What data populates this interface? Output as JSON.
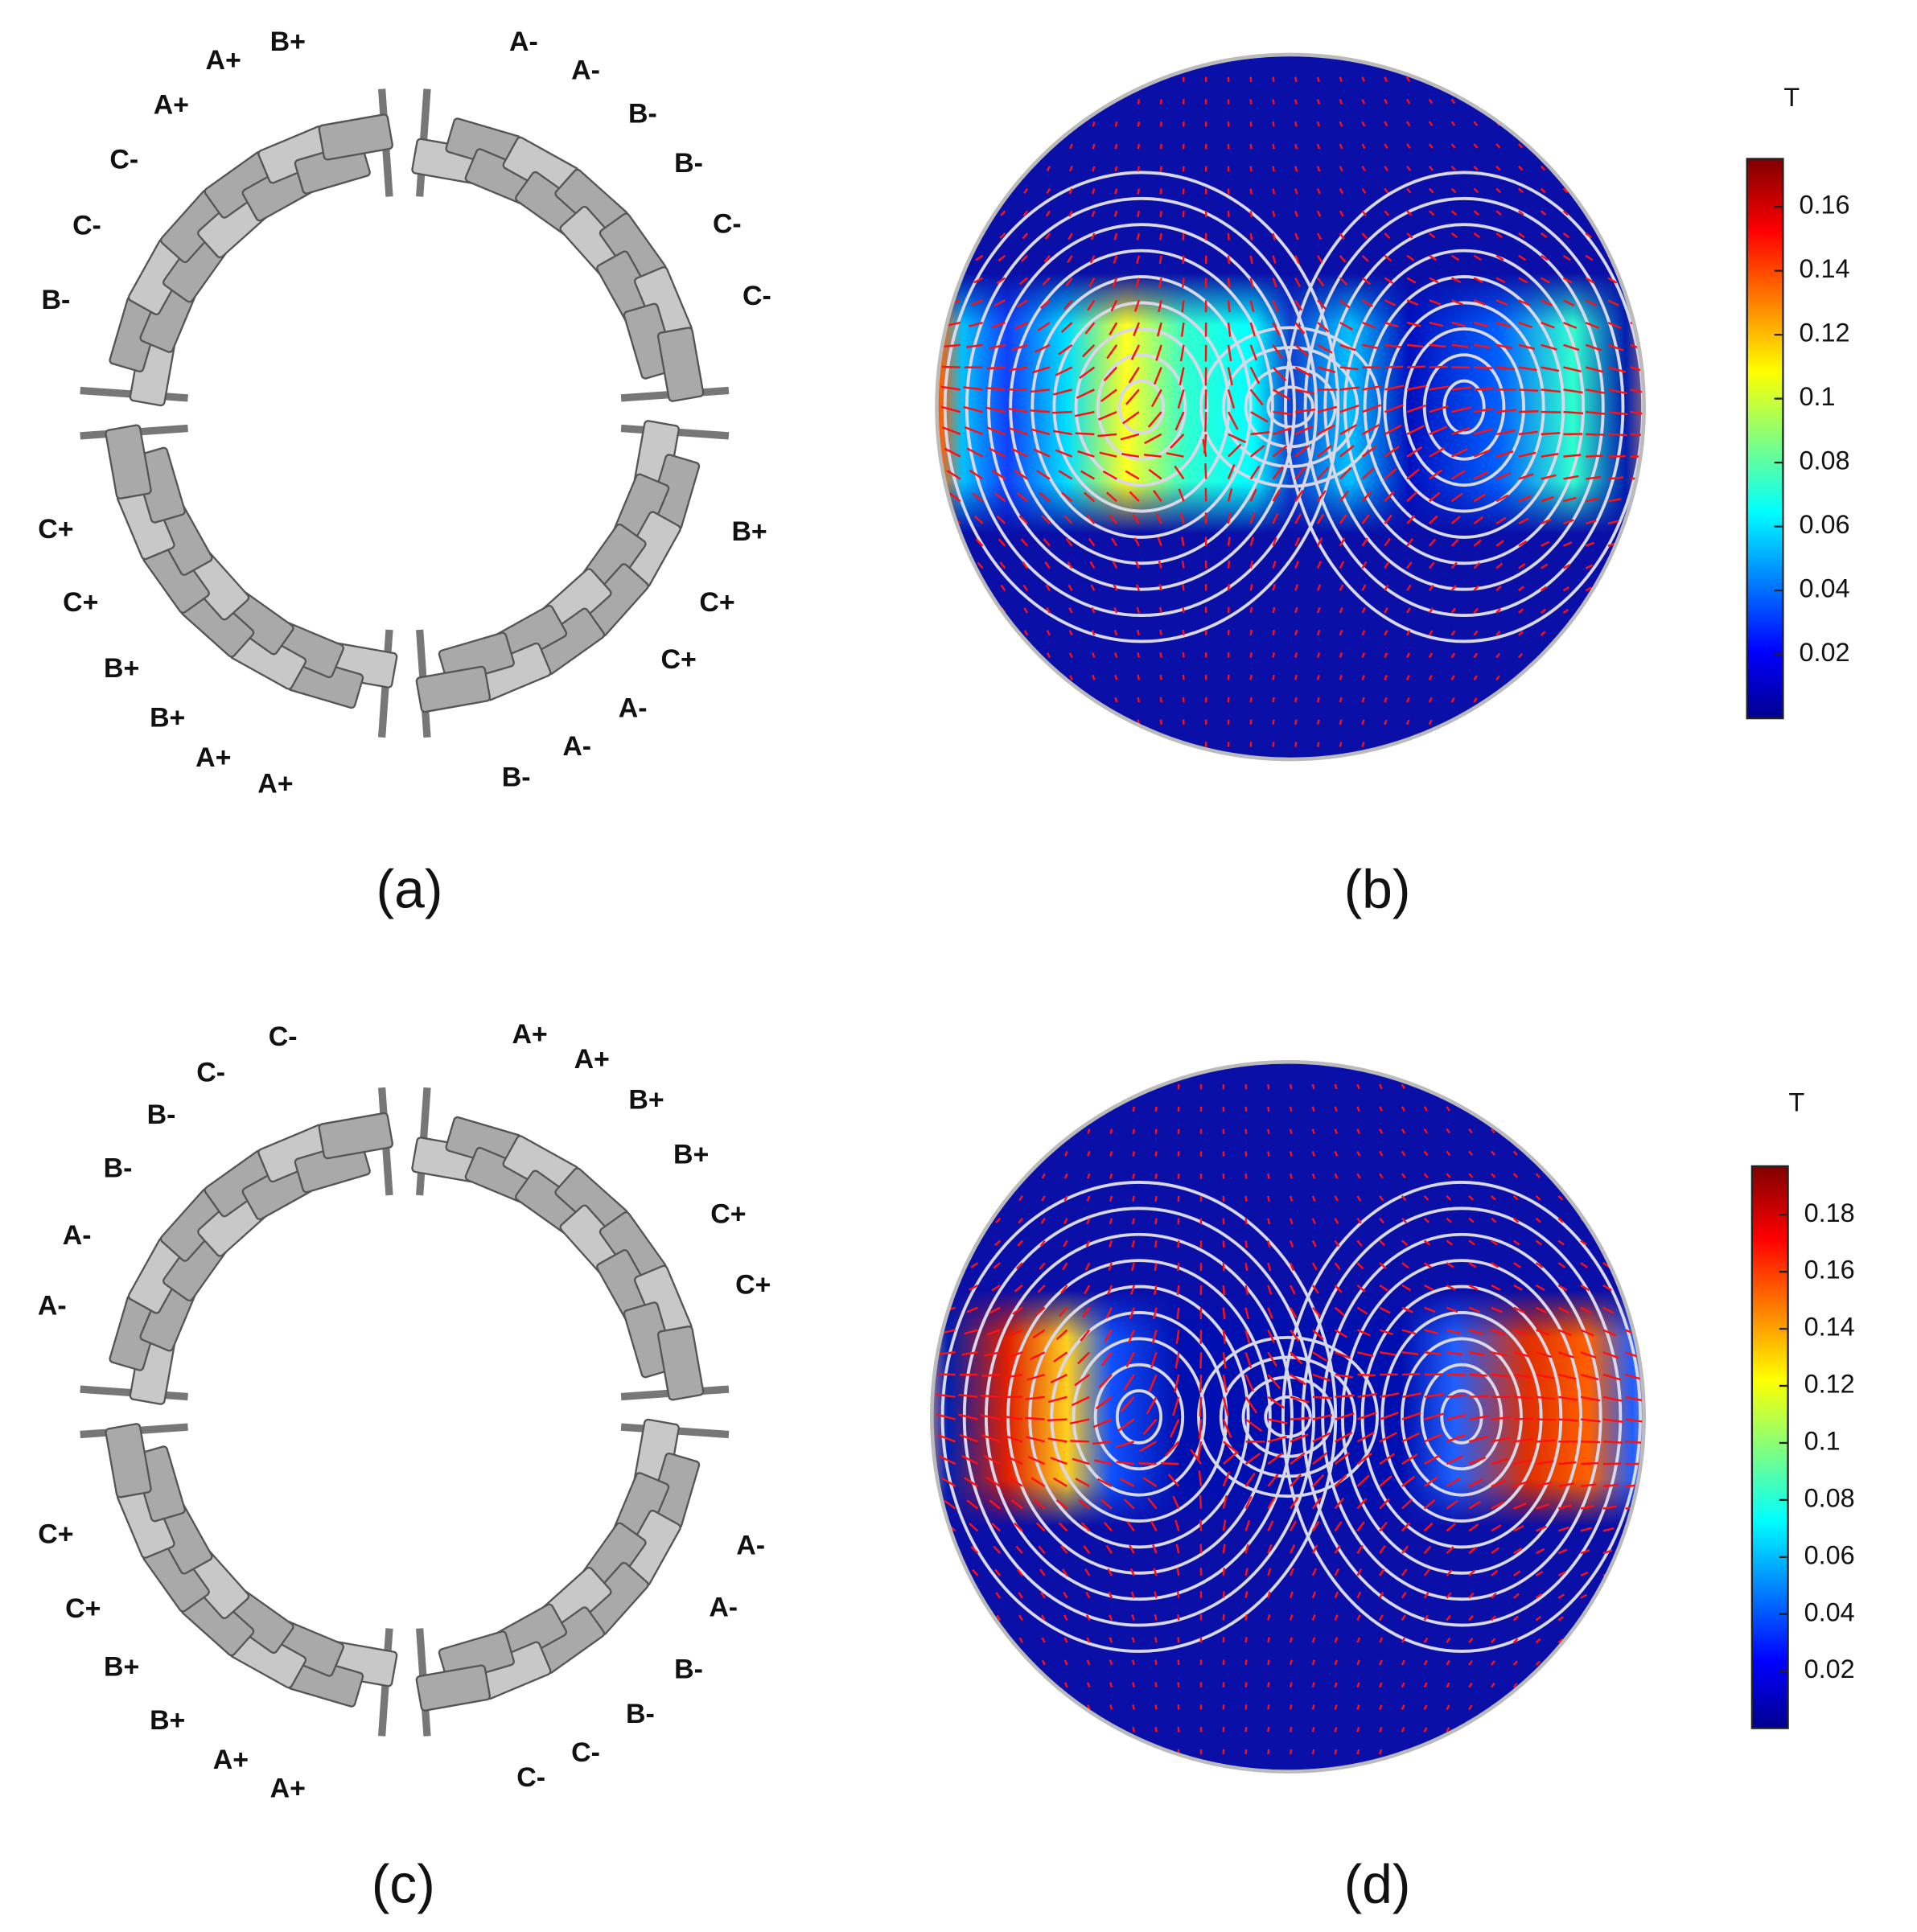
{
  "panels": [
    {
      "label": "(a)",
      "quadrants": {
        "top_left": [
          "B+",
          "A+",
          "A+",
          "C-",
          "C-",
          "B-"
        ],
        "top_right": [
          "A-",
          "A-",
          "B-",
          "B-",
          "C-",
          "C-"
        ],
        "bottom_left": [
          "C+",
          "C+",
          "B+",
          "B+",
          "A+",
          "A+"
        ],
        "bottom_right": [
          "B+",
          "C+",
          "C+",
          "A-",
          "A-",
          "B-"
        ]
      }
    },
    {
      "label": "(b)",
      "colorbar": {
        "unit": "T",
        "lim": [
          0,
          0.175
        ],
        "ticks": [
          0.02,
          0.04,
          0.06,
          0.08,
          0.1,
          0.12,
          0.14,
          0.16
        ]
      }
    },
    {
      "label": "(c)",
      "quadrants": {
        "top_left": [
          "C-",
          "C-",
          "B-",
          "B-",
          "A-",
          "A-"
        ],
        "top_right": [
          "A+",
          "A+",
          "B+",
          "B+",
          "C+",
          "C+"
        ],
        "bottom_left": [
          "C+",
          "C+",
          "B+",
          "B+",
          "A+",
          "A+"
        ],
        "bottom_right": [
          "A-",
          "A-",
          "B-",
          "B-",
          "C-",
          "C-"
        ]
      }
    },
    {
      "label": "(d)",
      "colorbar": {
        "unit": "T",
        "lim": [
          0,
          0.197
        ],
        "ticks": [
          0.02,
          0.04,
          0.06,
          0.08,
          0.1,
          0.12,
          0.14,
          0.16,
          0.18
        ]
      }
    }
  ]
}
